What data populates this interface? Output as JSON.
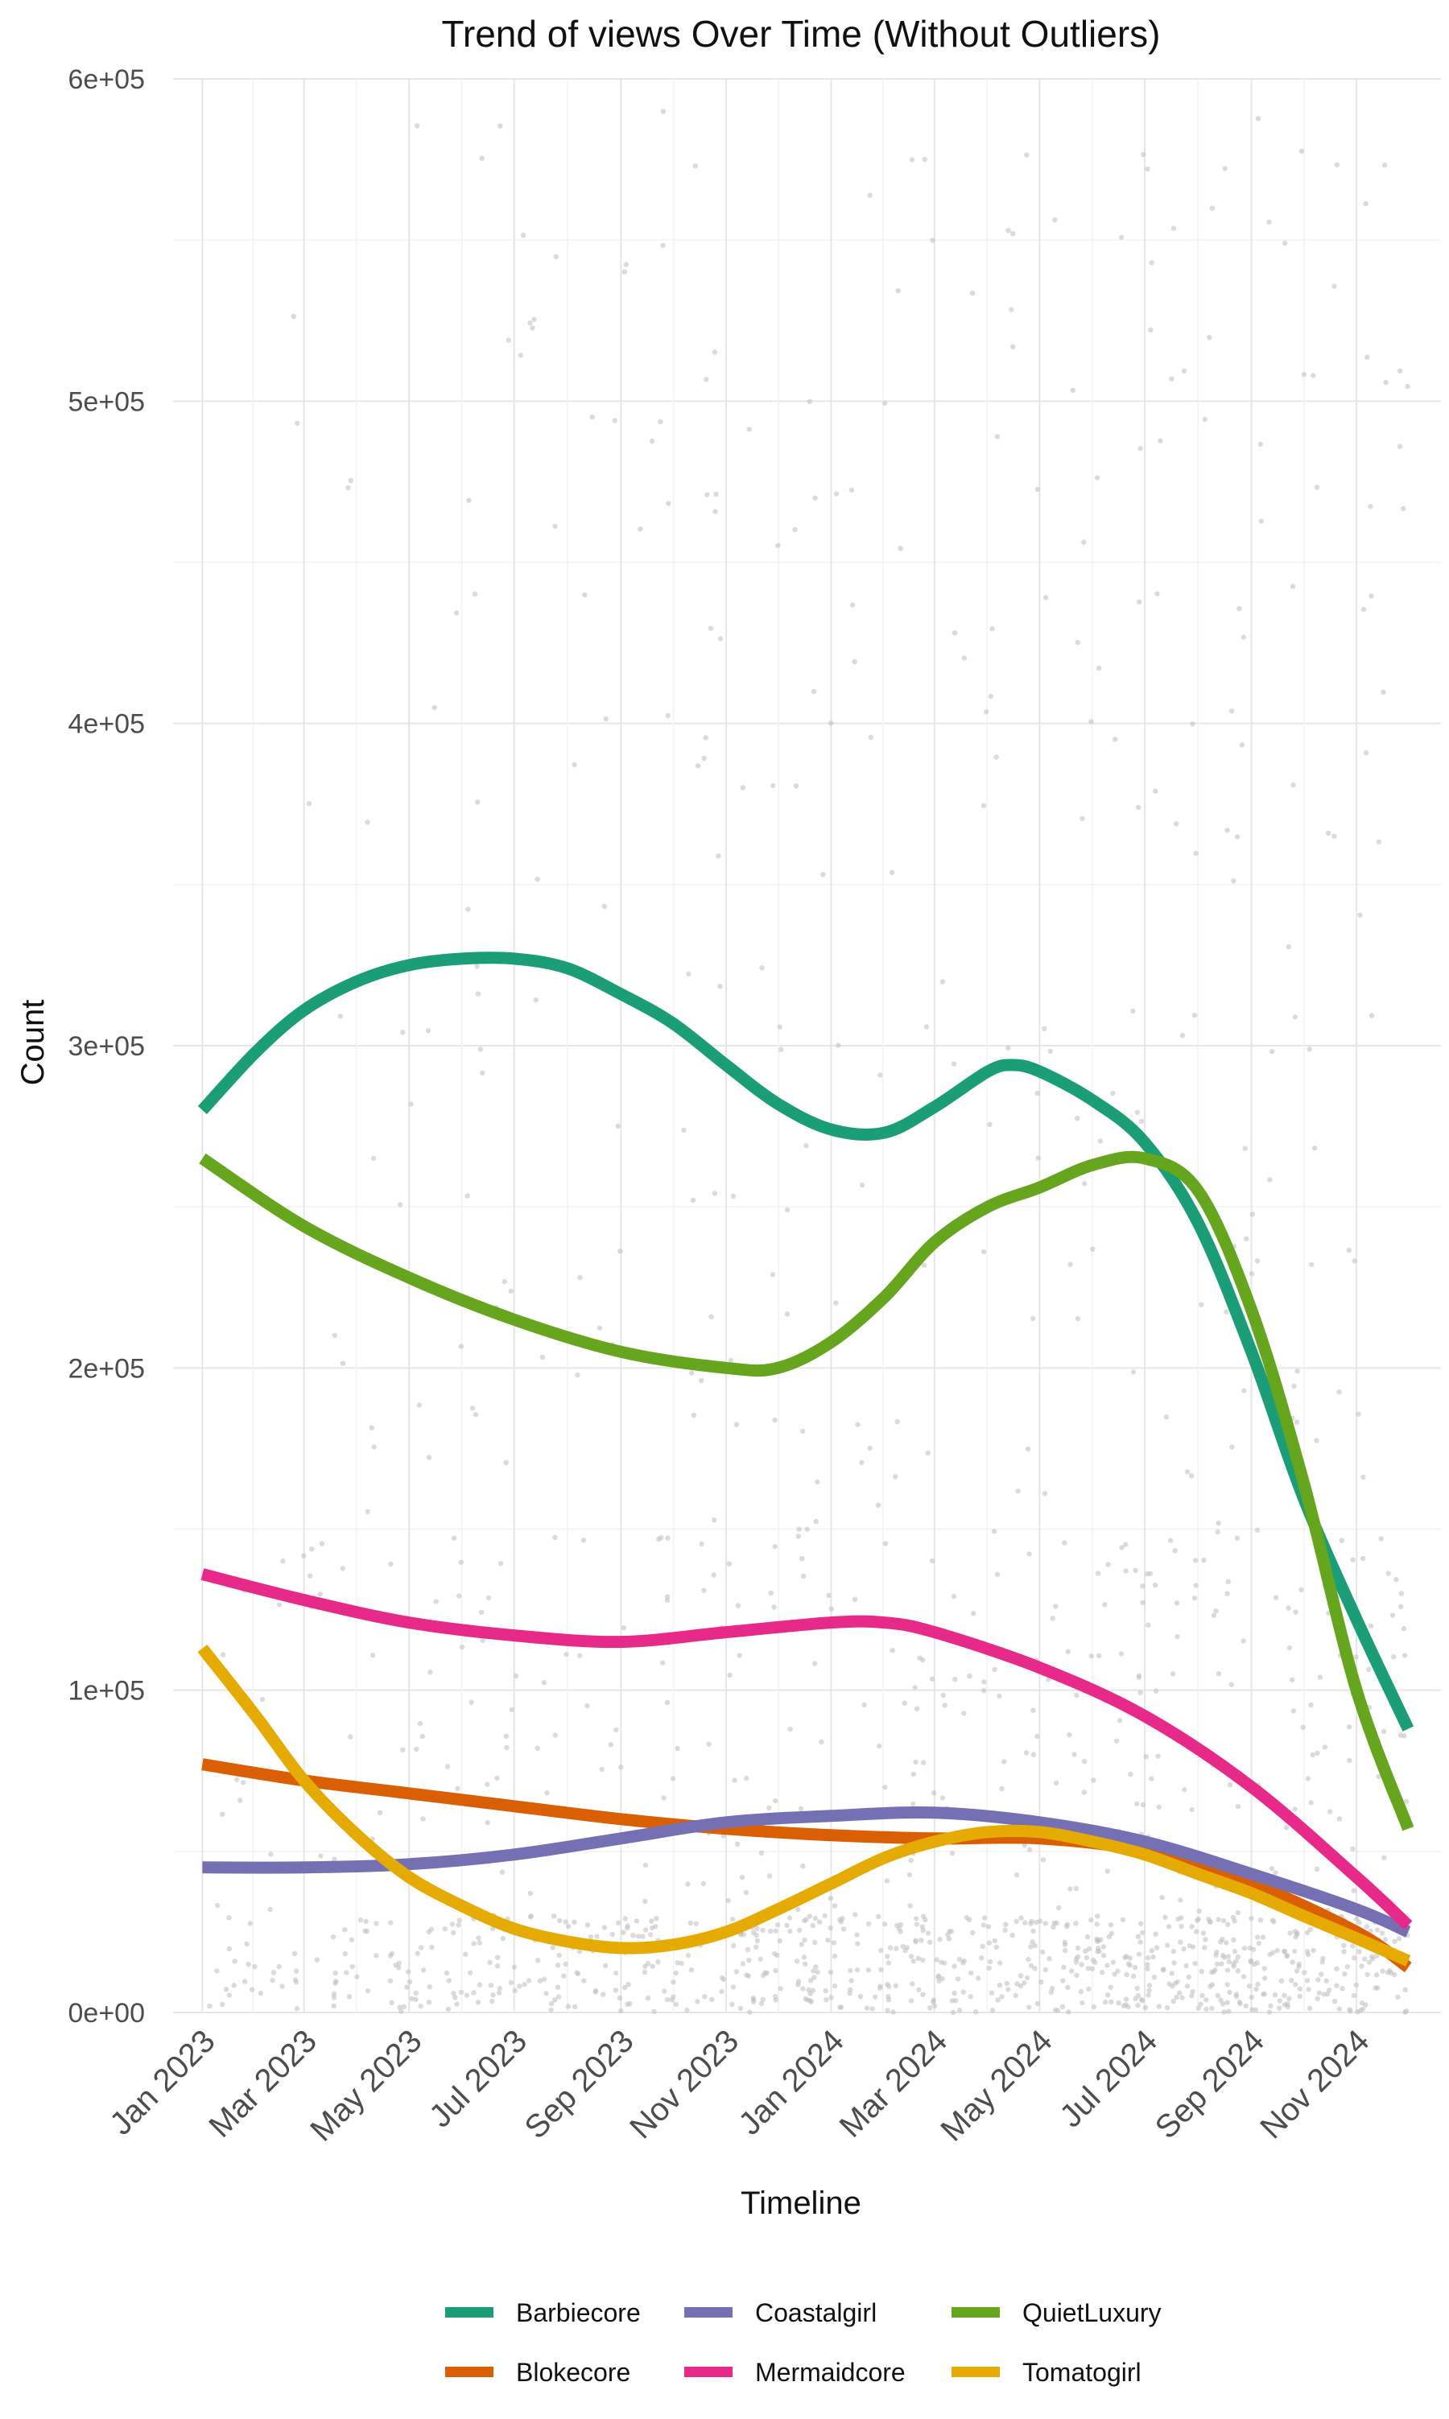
{
  "chart_data": {
    "type": "line",
    "title": "Trend of views Over Time (Without Outliers)",
    "xlabel": "Timeline",
    "ylabel": "Count",
    "ylim": [
      0,
      600000
    ],
    "xlim": [
      "2022-12-15",
      "2024-12-20"
    ],
    "x_ticks": [
      {
        "date": "2023-01-01",
        "label": "Jan 2023"
      },
      {
        "date": "2023-03-01",
        "label": "Mar 2023"
      },
      {
        "date": "2023-05-01",
        "label": "May 2023"
      },
      {
        "date": "2023-07-01",
        "label": "Jul 2023"
      },
      {
        "date": "2023-09-01",
        "label": "Sep 2023"
      },
      {
        "date": "2023-11-01",
        "label": "Nov 2023"
      },
      {
        "date": "2024-01-01",
        "label": "Jan 2024"
      },
      {
        "date": "2024-03-01",
        "label": "Mar 2024"
      },
      {
        "date": "2024-05-01",
        "label": "May 2024"
      },
      {
        "date": "2024-07-01",
        "label": "Jul 2024"
      },
      {
        "date": "2024-09-01",
        "label": "Sep 2024"
      },
      {
        "date": "2024-11-01",
        "label": "Nov 2024"
      }
    ],
    "y_ticks": [
      {
        "value": 0,
        "label": "0e+00"
      },
      {
        "value": 100000,
        "label": "1e+05"
      },
      {
        "value": 200000,
        "label": "2e+05"
      },
      {
        "value": 300000,
        "label": "3e+05"
      },
      {
        "value": 400000,
        "label": "4e+05"
      },
      {
        "value": 500000,
        "label": "5e+05"
      },
      {
        "value": 600000,
        "label": "6e+05"
      }
    ],
    "grid": true,
    "legend_position": "bottom",
    "scatter_color": "#bdbdbd",
    "series": [
      {
        "name": "Barbiecore",
        "color": "#1b9e77",
        "points": [
          [
            "2023-01-01",
            280000
          ],
          [
            "2023-02-01",
            298000
          ],
          [
            "2023-03-01",
            311000
          ],
          [
            "2023-04-01",
            320000
          ],
          [
            "2023-05-01",
            325000
          ],
          [
            "2023-06-01",
            327000
          ],
          [
            "2023-07-01",
            327000
          ],
          [
            "2023-08-01",
            324000
          ],
          [
            "2023-09-01",
            316000
          ],
          [
            "2023-10-01",
            307000
          ],
          [
            "2023-11-01",
            294000
          ],
          [
            "2023-12-01",
            282000
          ],
          [
            "2024-01-01",
            274000
          ],
          [
            "2024-02-01",
            273000
          ],
          [
            "2024-03-01",
            281000
          ],
          [
            "2024-04-01",
            292000
          ],
          [
            "2024-04-15",
            294000
          ],
          [
            "2024-05-01",
            292000
          ],
          [
            "2024-06-01",
            283000
          ],
          [
            "2024-07-01",
            270000
          ],
          [
            "2024-08-01",
            245000
          ],
          [
            "2024-09-01",
            205000
          ],
          [
            "2024-10-01",
            160000
          ],
          [
            "2024-11-01",
            122000
          ],
          [
            "2024-12-01",
            88000
          ]
        ]
      },
      {
        "name": "Blokecore",
        "color": "#d95f02",
        "points": [
          [
            "2023-01-01",
            77000
          ],
          [
            "2023-03-01",
            72000
          ],
          [
            "2023-05-01",
            68000
          ],
          [
            "2023-07-01",
            64000
          ],
          [
            "2023-09-01",
            60000
          ],
          [
            "2023-11-01",
            57000
          ],
          [
            "2024-01-01",
            55000
          ],
          [
            "2024-03-01",
            54000
          ],
          [
            "2024-05-01",
            54000
          ],
          [
            "2024-07-01",
            50000
          ],
          [
            "2024-09-01",
            40000
          ],
          [
            "2024-11-01",
            25000
          ],
          [
            "2024-12-01",
            14000
          ]
        ]
      },
      {
        "name": "Coastalgirl",
        "color": "#7570b3",
        "points": [
          [
            "2023-01-01",
            45000
          ],
          [
            "2023-03-01",
            45000
          ],
          [
            "2023-05-01",
            46000
          ],
          [
            "2023-07-01",
            49000
          ],
          [
            "2023-09-01",
            54000
          ],
          [
            "2023-11-01",
            59000
          ],
          [
            "2024-01-01",
            61000
          ],
          [
            "2024-03-01",
            62000
          ],
          [
            "2024-05-01",
            59000
          ],
          [
            "2024-07-01",
            53000
          ],
          [
            "2024-09-01",
            43000
          ],
          [
            "2024-11-01",
            32000
          ],
          [
            "2024-12-01",
            25000
          ]
        ]
      },
      {
        "name": "Mermaidcore",
        "color": "#e7298a",
        "points": [
          [
            "2023-01-01",
            136000
          ],
          [
            "2023-03-01",
            128000
          ],
          [
            "2023-05-01",
            121000
          ],
          [
            "2023-07-01",
            117000
          ],
          [
            "2023-09-01",
            115000
          ],
          [
            "2023-11-01",
            118000
          ],
          [
            "2024-01-01",
            121000
          ],
          [
            "2024-02-01",
            121000
          ],
          [
            "2024-03-01",
            118000
          ],
          [
            "2024-05-01",
            107000
          ],
          [
            "2024-07-01",
            92000
          ],
          [
            "2024-09-01",
            70000
          ],
          [
            "2024-11-01",
            42000
          ],
          [
            "2024-12-01",
            27000
          ]
        ]
      },
      {
        "name": "QuietLuxury",
        "color": "#66a61e",
        "points": [
          [
            "2023-01-01",
            265000
          ],
          [
            "2023-03-01",
            244000
          ],
          [
            "2023-05-01",
            228000
          ],
          [
            "2023-07-01",
            215000
          ],
          [
            "2023-09-01",
            205000
          ],
          [
            "2023-11-01",
            200000
          ],
          [
            "2023-12-01",
            200000
          ],
          [
            "2024-01-01",
            208000
          ],
          [
            "2024-02-01",
            222000
          ],
          [
            "2024-03-01",
            239000
          ],
          [
            "2024-04-01",
            250000
          ],
          [
            "2024-05-01",
            256000
          ],
          [
            "2024-06-01",
            263000
          ],
          [
            "2024-07-01",
            265000
          ],
          [
            "2024-08-01",
            255000
          ],
          [
            "2024-09-01",
            218000
          ],
          [
            "2024-10-01",
            165000
          ],
          [
            "2024-11-01",
            100000
          ],
          [
            "2024-12-01",
            57000
          ]
        ]
      },
      {
        "name": "Tomatogirl",
        "color": "#e6ab02",
        "points": [
          [
            "2023-01-01",
            113000
          ],
          [
            "2023-02-01",
            92000
          ],
          [
            "2023-03-01",
            72000
          ],
          [
            "2023-04-01",
            55000
          ],
          [
            "2023-05-01",
            42000
          ],
          [
            "2023-06-01",
            33000
          ],
          [
            "2023-07-01",
            26000
          ],
          [
            "2023-08-01",
            22000
          ],
          [
            "2023-09-01",
            20000
          ],
          [
            "2023-10-01",
            21000
          ],
          [
            "2023-11-01",
            25000
          ],
          [
            "2023-12-01",
            32000
          ],
          [
            "2024-01-01",
            40000
          ],
          [
            "2024-02-01",
            48000
          ],
          [
            "2024-03-01",
            53000
          ],
          [
            "2024-04-01",
            56000
          ],
          [
            "2024-05-01",
            56000
          ],
          [
            "2024-06-01",
            53000
          ],
          [
            "2024-07-01",
            49000
          ],
          [
            "2024-08-01",
            43000
          ],
          [
            "2024-09-01",
            37000
          ],
          [
            "2024-10-01",
            30000
          ],
          [
            "2024-11-01",
            23000
          ],
          [
            "2024-12-01",
            16000
          ]
        ]
      }
    ]
  }
}
